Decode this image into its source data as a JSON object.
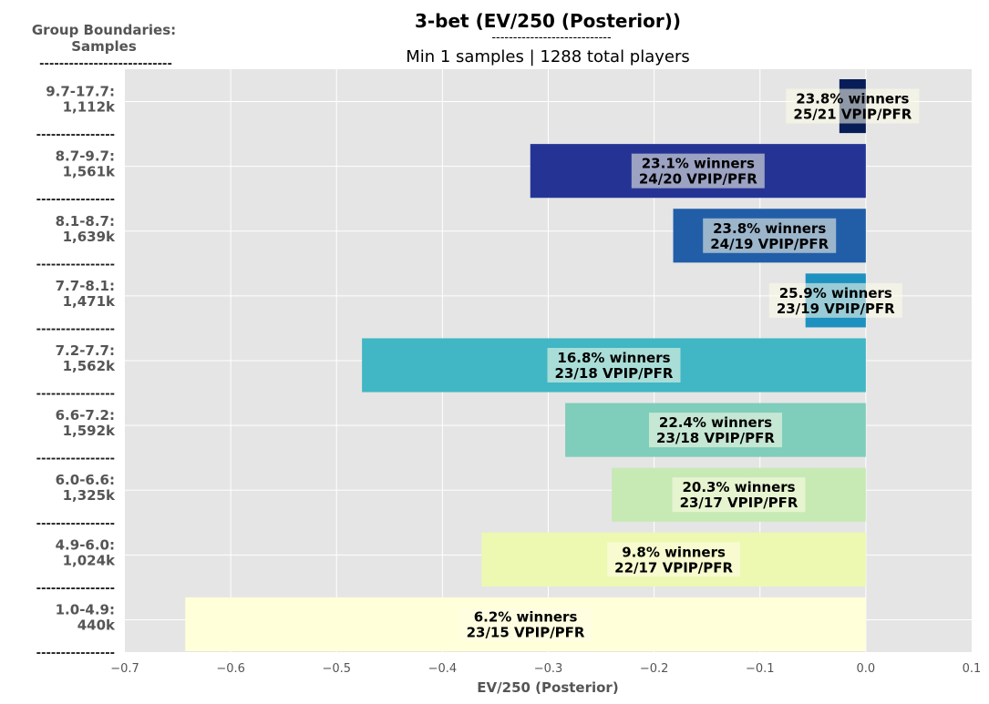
{
  "chart_data": {
    "type": "bar",
    "orientation": "horizontal",
    "title": "3-bet (EV/250 (Posterior))",
    "title_underline": "----------------------------",
    "subtitle": "Min 1 samples | 1288 total players",
    "xlabel": "EV/250 (Posterior)",
    "group_header": {
      "line1": "Group Boundaries:",
      "line2": "Samples",
      "underline": "---------------------------"
    },
    "group_separator": "----------------",
    "xlim": [
      -0.7,
      0.1
    ],
    "xticks": [
      -0.7,
      -0.6,
      -0.5,
      -0.4,
      -0.3,
      -0.2,
      -0.1,
      0.0,
      0.1
    ],
    "xtick_labels": [
      "−0.7",
      "−0.6",
      "−0.5",
      "−0.4",
      "−0.3",
      "−0.2",
      "−0.1",
      "0.0",
      "0.1"
    ],
    "grid": true,
    "background": "#e5e5e5",
    "bars": [
      {
        "range": "9.7-17.7:",
        "samples": "1,112k",
        "value": -0.025,
        "winners": "23.8% winners",
        "vpip_pfr": "25/21 VPIP/PFR",
        "color": "#081d58"
      },
      {
        "range": "8.7-9.7:",
        "samples": "1,561k",
        "value": -0.317,
        "winners": "23.1% winners",
        "vpip_pfr": "24/20 VPIP/PFR",
        "color": "#253494"
      },
      {
        "range": "8.1-8.7:",
        "samples": "1,639k",
        "value": -0.182,
        "winners": "23.8% winners",
        "vpip_pfr": "24/19 VPIP/PFR",
        "color": "#225ea8"
      },
      {
        "range": "7.7-8.1:",
        "samples": "1,471k",
        "value": -0.057,
        "winners": "25.9% winners",
        "vpip_pfr": "23/19 VPIP/PFR",
        "color": "#1d91c0"
      },
      {
        "range": "7.2-7.7:",
        "samples": "1,562k",
        "value": -0.476,
        "winners": "16.8% winners",
        "vpip_pfr": "23/18 VPIP/PFR",
        "color": "#41b6c4"
      },
      {
        "range": "6.6-7.2:",
        "samples": "1,592k",
        "value": -0.284,
        "winners": "22.4% winners",
        "vpip_pfr": "23/18 VPIP/PFR",
        "color": "#7fcdbb"
      },
      {
        "range": "6.0-6.6:",
        "samples": "1,325k",
        "value": -0.24,
        "winners": "20.3% winners",
        "vpip_pfr": "23/17 VPIP/PFR",
        "color": "#c7e9b4"
      },
      {
        "range": "4.9-6.0:",
        "samples": "1,024k",
        "value": -0.363,
        "winners": "9.8% winners",
        "vpip_pfr": "22/17 VPIP/PFR",
        "color": "#edf8b1"
      },
      {
        "range": "1.0-4.9:",
        "samples": "440k",
        "value": -0.643,
        "winners": "6.2% winners",
        "vpip_pfr": "23/15 VPIP/PFR",
        "color": "#ffffd9"
      }
    ]
  }
}
